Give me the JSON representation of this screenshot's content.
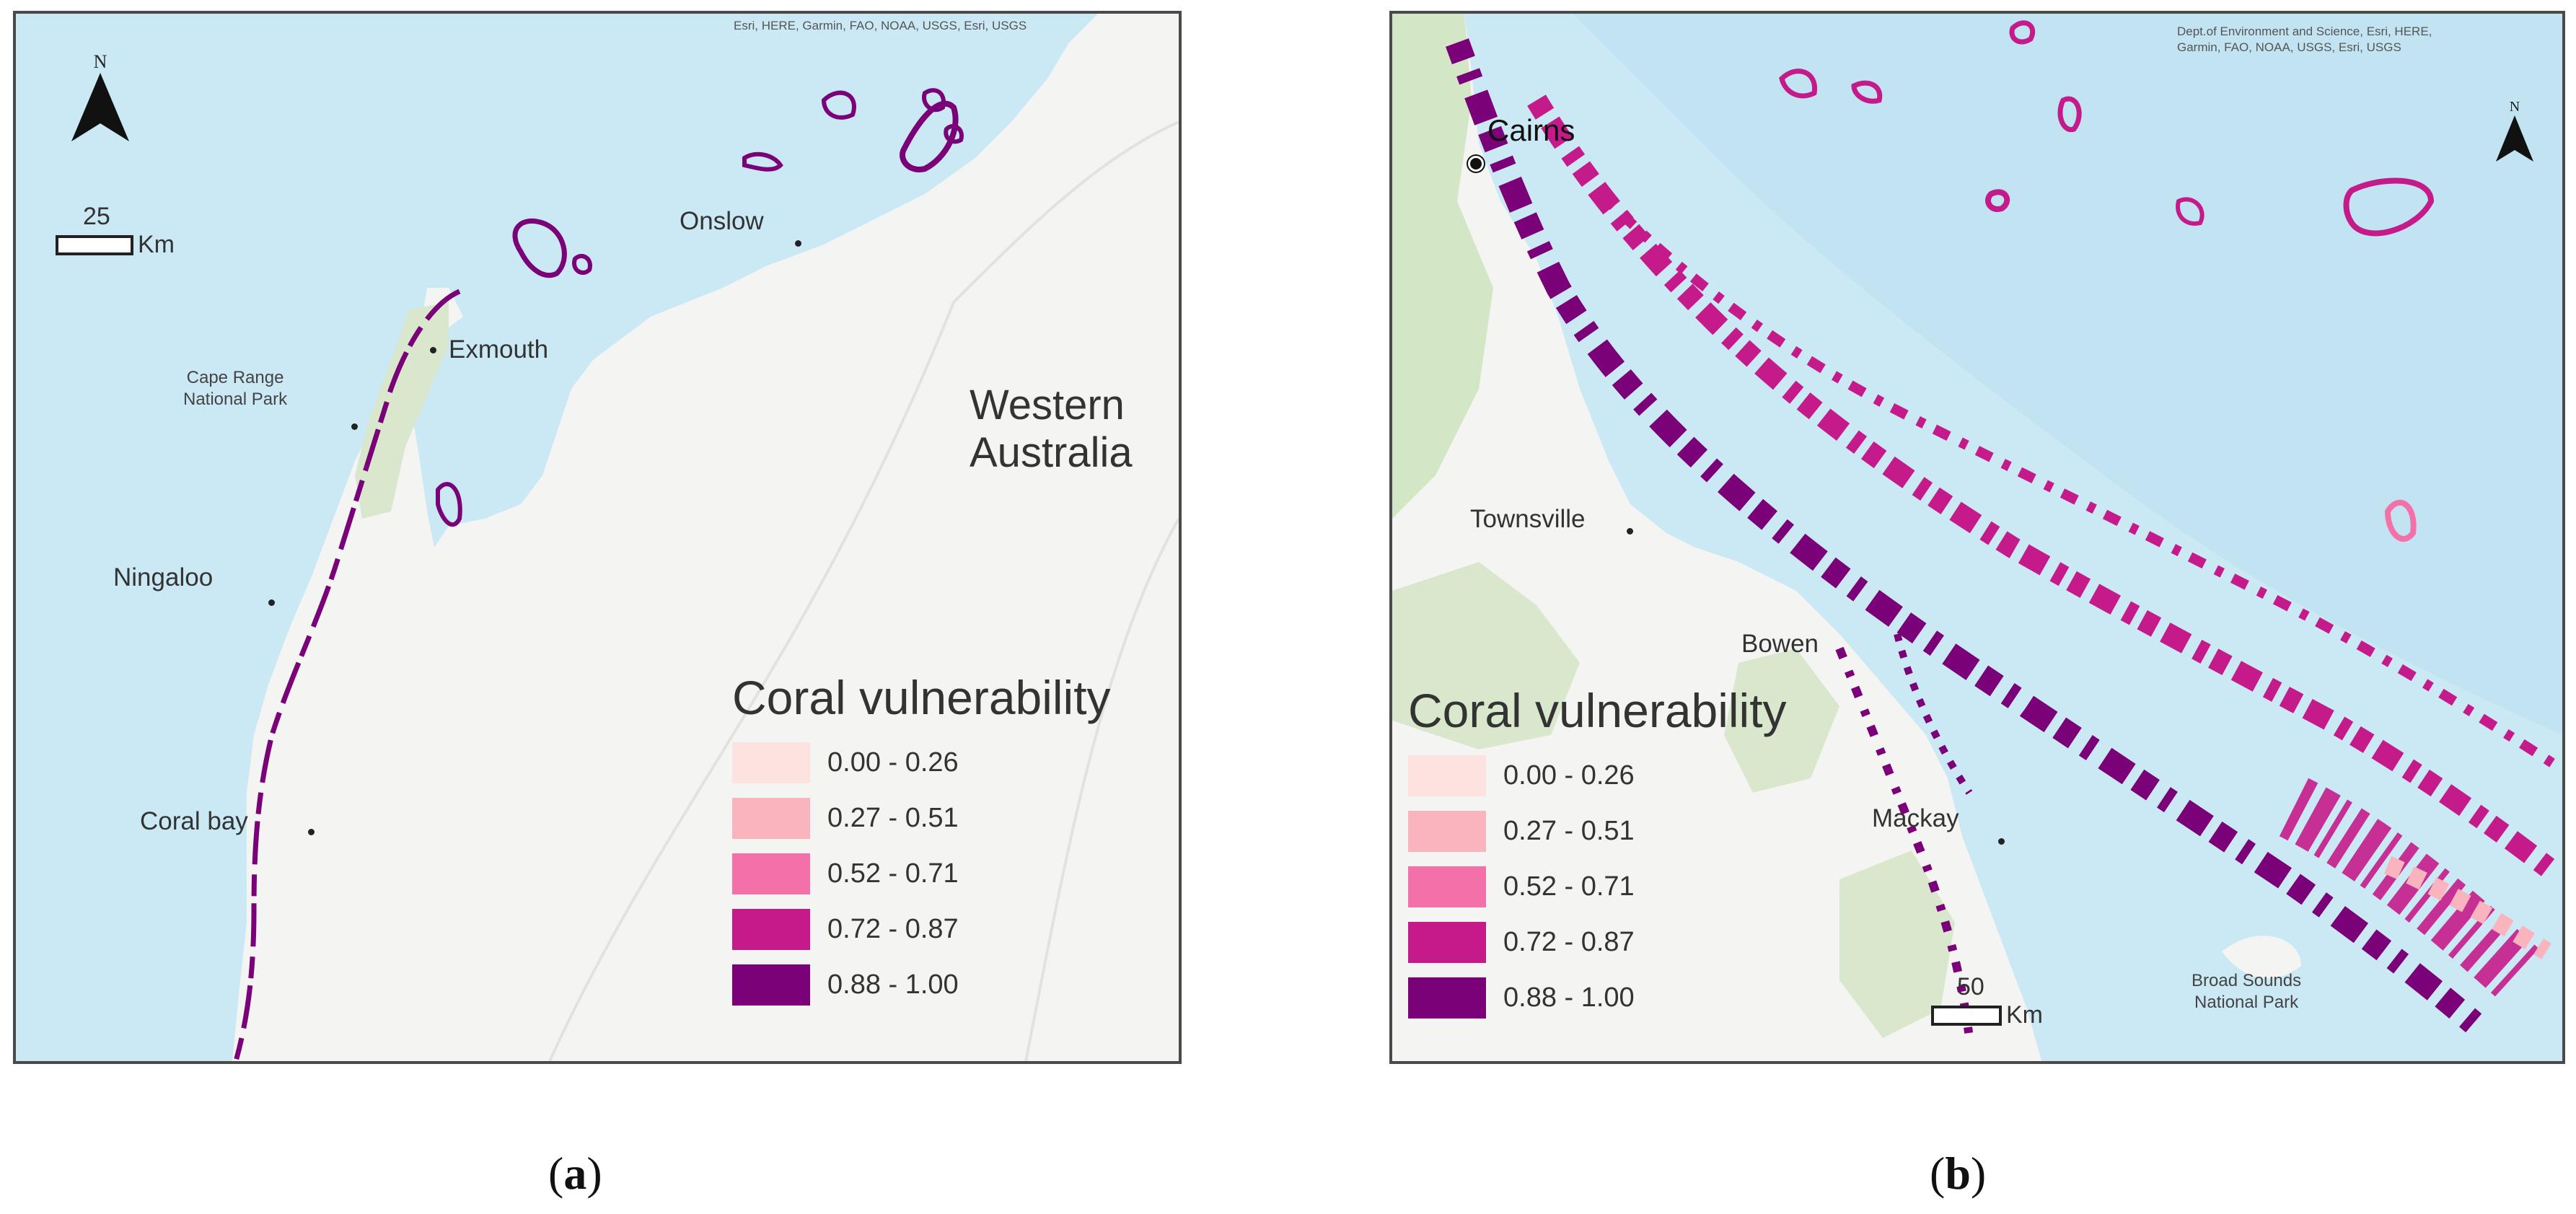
{
  "panel_a": {
    "attribution": "Esri, HERE, Garmin, FAO, NOAA, USGS, Esri, USGS",
    "places": {
      "onslow": "Onslow",
      "exmouth": "Exmouth",
      "cape_range_line1": "Cape Range",
      "cape_range_line2": "National Park",
      "ningaloo": "Ningaloo",
      "coral_bay": "Coral bay",
      "wa_line1": "Western",
      "wa_line2": "Australia"
    },
    "scale": {
      "value": "25",
      "unit": "Km"
    },
    "north_label": "N",
    "caption_letter": "a"
  },
  "panel_b": {
    "attribution_line1": "Dept.of Environment and Science, Esri, HERE,",
    "attribution_line2": "Garmin, FAO, NOAA, USGS, Esri, USGS",
    "places": {
      "cairns": "Cairns",
      "townsville": "Townsville",
      "bowen": "Bowen",
      "mackay": "Mackay",
      "broad_sounds_line1": "Broad Sounds",
      "broad_sounds_line2": "National Park"
    },
    "scale": {
      "value": "50",
      "unit": "Km"
    },
    "north_label": "N",
    "caption_letter": "b"
  },
  "legend": {
    "title": "Coral vulnerability",
    "classes": [
      {
        "label": "0.00 - 0.26",
        "color": "#fde3df"
      },
      {
        "label": "0.27 - 0.51",
        "color": "#fab4bd"
      },
      {
        "label": "0.52 - 0.71",
        "color": "#f470a8"
      },
      {
        "label": "0.72 - 0.87",
        "color": "#c51b8a"
      },
      {
        "label": "0.88 - 1.00",
        "color": "#7a0177"
      }
    ]
  },
  "colors": {
    "ocean": "#cbe9f5",
    "land": "#f4f4f2",
    "park": "#d9e8cc",
    "frame": "#4a4a4a"
  }
}
